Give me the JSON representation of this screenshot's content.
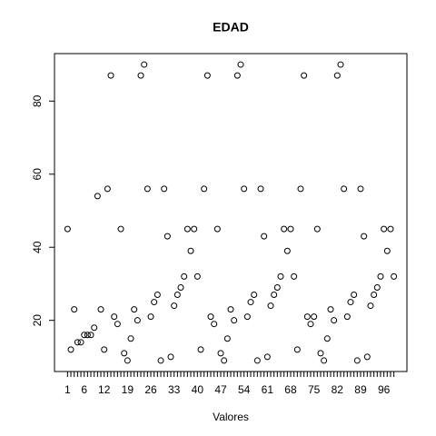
{
  "chart_data": {
    "type": "scatter",
    "title": "EDAD",
    "x_label": "Valores",
    "categories": [
      "1",
      null,
      null,
      null,
      null,
      "6",
      null,
      null,
      null,
      null,
      null,
      "12",
      null,
      null,
      null,
      null,
      null,
      null,
      "19",
      null,
      null,
      null,
      null,
      null,
      null,
      "26",
      null,
      null,
      null,
      null,
      null,
      null,
      "33",
      null,
      null,
      null,
      null,
      null,
      null,
      "40",
      null,
      null,
      null,
      null,
      null,
      null,
      "47",
      null,
      null,
      null,
      null,
      null,
      null,
      "54",
      null,
      null,
      null,
      null,
      null,
      null,
      "61",
      null,
      null,
      null,
      null,
      null,
      null,
      "68",
      null,
      null,
      null,
      null,
      null,
      null,
      "75",
      null,
      null,
      null,
      null,
      null,
      null,
      "82",
      null,
      null,
      null,
      null,
      null,
      null,
      "89",
      null,
      null,
      null,
      null,
      null,
      null,
      "96",
      null,
      null,
      null
    ],
    "values": [
      45,
      12,
      23,
      14,
      14,
      16,
      16,
      16,
      18,
      54,
      23,
      12,
      56,
      87,
      21,
      19,
      45,
      11,
      9,
      15,
      23,
      20,
      87,
      90,
      56,
      21,
      25,
      27,
      9,
      56,
      43,
      10,
      24,
      27,
      29,
      32,
      45,
      39,
      45,
      32,
      12,
      56,
      87,
      21,
      19,
      45,
      11,
      9,
      15,
      23,
      20,
      87,
      90,
      56,
      21,
      25,
      27,
      9,
      56,
      43,
      10,
      24,
      27,
      29,
      32,
      45,
      39,
      45,
      32,
      12,
      56,
      87,
      21,
      19,
      21,
      45,
      11,
      9,
      15,
      23,
      20,
      87,
      90,
      56,
      21,
      25,
      27,
      9,
      56,
      43,
      10,
      24,
      27,
      29,
      32,
      45,
      39,
      45,
      32
    ],
    "color": "#000000",
    "ylim": [
      6,
      93
    ],
    "yticks": [
      20,
      40,
      60,
      80
    ]
  }
}
